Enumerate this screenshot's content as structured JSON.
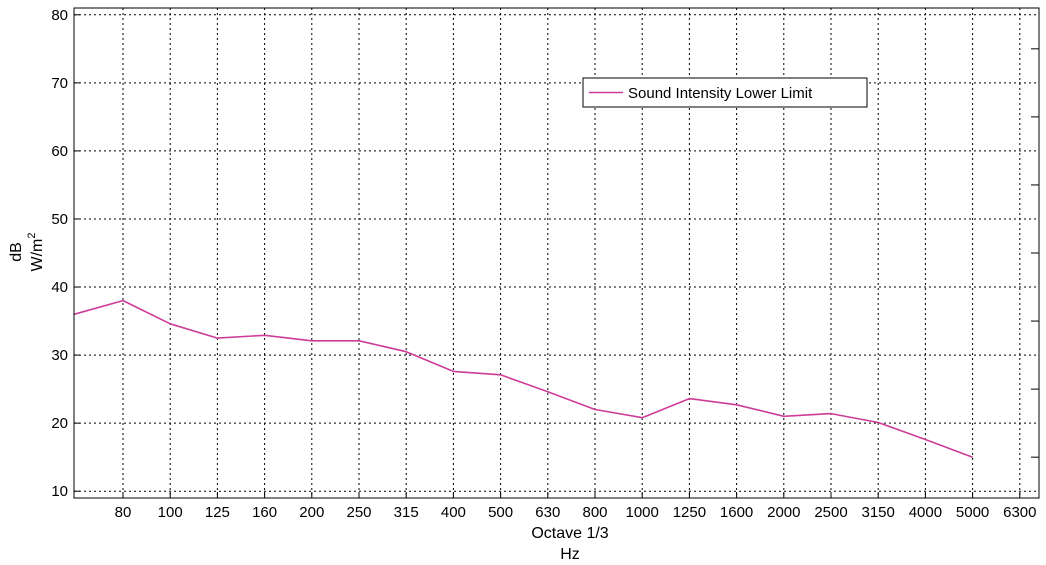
{
  "chart_data": {
    "type": "line",
    "xlabel_lines": [
      "Octave 1/3",
      "Hz"
    ],
    "ylabel": "dB",
    "ylabel_unit": "W/m",
    "ylabel_unit_sup": "2",
    "ylim": [
      9,
      81
    ],
    "yticks": [
      10,
      20,
      30,
      40,
      50,
      60,
      70,
      80
    ],
    "x_ticks": [
      "80",
      "100",
      "125",
      "160",
      "200",
      "250",
      "315",
      "400",
      "500",
      "630",
      "800",
      "1000",
      "1250",
      "1600",
      "2000",
      "2500",
      "3150",
      "4000",
      "5000",
      "6300"
    ],
    "grid": true,
    "legend_position": "top-right",
    "series": [
      {
        "name": "Sound Intensity Lower Limit",
        "color": "#cc3d98",
        "x": [
          "63",
          "80",
          "100",
          "125",
          "160",
          "200",
          "250",
          "315",
          "400",
          "500",
          "630",
          "800",
          "1000",
          "1250",
          "1600",
          "2000",
          "2500",
          "3150",
          "4000",
          "5000"
        ],
        "values": [
          36,
          38,
          34.6,
          32.5,
          32.9,
          32.1,
          32.1,
          30.5,
          27.6,
          27.1,
          24.6,
          22.0,
          20.8,
          23.6,
          22.7,
          21.0,
          21.4,
          20.1,
          17.6,
          15.0
        ]
      }
    ]
  }
}
